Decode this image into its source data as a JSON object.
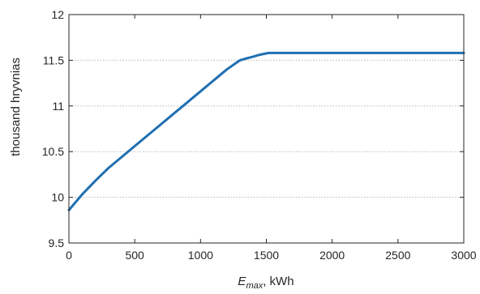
{
  "chart_data": {
    "type": "line",
    "title": "",
    "xlabel": {
      "main": "E",
      "sub": "max",
      "rest": ", kWh"
    },
    "ylabel": "thousand hryvnias",
    "xlim": [
      0,
      3000
    ],
    "ylim": [
      9.5,
      12
    ],
    "xticks": [
      "0",
      "500",
      "1000",
      "1500",
      "2000",
      "2500",
      "3000"
    ],
    "yticks": [
      "9.5",
      "10",
      "10.5",
      "11",
      "11.5",
      "12"
    ],
    "grid": "horizontal dotted",
    "series": [
      {
        "color": "#1f6fb2",
        "x": [
          0,
          100,
          200,
          300,
          400,
          500,
          600,
          700,
          800,
          900,
          1000,
          1100,
          1200,
          1300,
          1350,
          1400,
          1450,
          1500,
          1520,
          2000,
          2500,
          3000
        ],
        "y": [
          9.86,
          10.03,
          10.18,
          10.32,
          10.44,
          10.56,
          10.68,
          10.8,
          10.92,
          11.04,
          11.16,
          11.28,
          11.4,
          11.5,
          11.52,
          11.54,
          11.56,
          11.575,
          11.58,
          11.58,
          11.58,
          11.58
        ]
      }
    ]
  }
}
